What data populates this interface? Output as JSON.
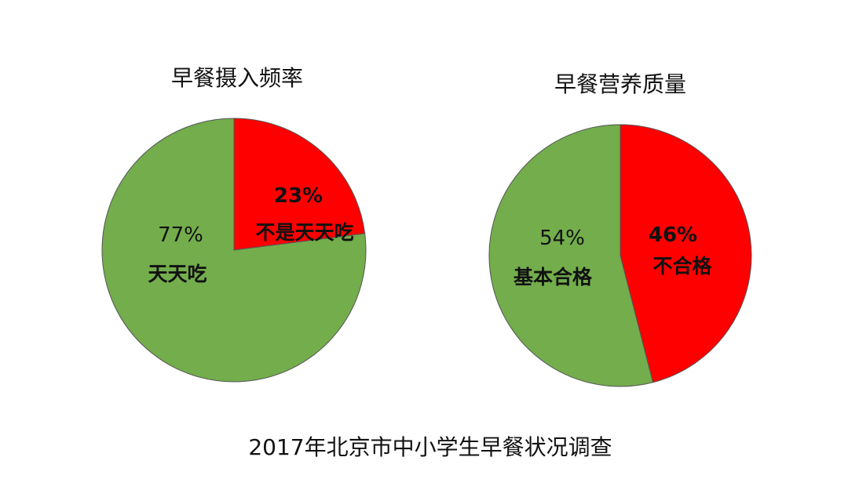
{
  "caption": "2017年北京市中小学生早餐状况调查",
  "chart_data": [
    {
      "type": "pie",
      "title": "早餐摄入频率",
      "slices": [
        {
          "label": "不是天天吃",
          "value": 23,
          "value_label": "23%",
          "color": "#ff0000"
        },
        {
          "label": "天天吃",
          "value": 77,
          "value_label": "77%",
          "color": "#73ad4c"
        }
      ]
    },
    {
      "type": "pie",
      "title": "早餐营养质量",
      "slices": [
        {
          "label": "不合格",
          "value": 46,
          "value_label": "46%",
          "color": "#ff0000"
        },
        {
          "label": "基本合格",
          "value": 54,
          "value_label": "54%",
          "color": "#73ad4c"
        }
      ]
    }
  ]
}
